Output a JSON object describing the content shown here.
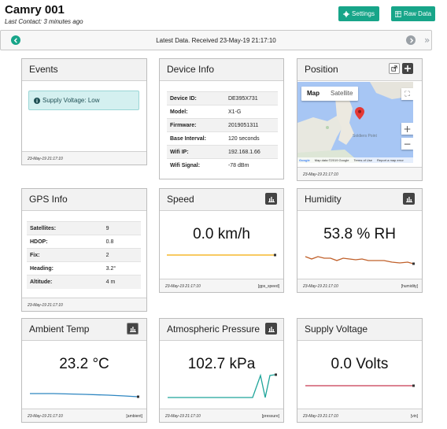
{
  "header": {
    "title": "Camry 001",
    "last_contact": "Last Contact: 3 minutes ago",
    "settings_label": "Settings",
    "raw_data_label": "Raw Data"
  },
  "latest": {
    "text": "Latest Data. Received 23-May-19 21:17:10"
  },
  "colors": {
    "teal": "#17a589",
    "speed_line": "#f5b82e",
    "humidity_line": "#c0602a",
    "ambient_line": "#2e86c1",
    "pressure_line": "#1fa59a",
    "voltage_line": "#d05a6e"
  },
  "events": {
    "title": "Events",
    "alert": "Supply Voltage: Low",
    "timestamp": "23-May-19 21:17:10"
  },
  "device_info": {
    "title": "Device Info",
    "rows": [
      {
        "k": "Device ID:",
        "v": "DE395X731"
      },
      {
        "k": "Model:",
        "v": "X1-G"
      },
      {
        "k": "Firmware:",
        "v": "2019051311"
      },
      {
        "k": "Base Interval:",
        "v": "120 seconds"
      },
      {
        "k": "Wifi IP:",
        "v": "192.168.1.66"
      },
      {
        "k": "Wifi Signal:",
        "v": "-78 dBm"
      }
    ]
  },
  "position": {
    "title": "Position",
    "map_tab": "Map",
    "satellite_tab": "Satellite",
    "place_label": "Soldiers Point",
    "credit_logo": "Google",
    "credit_data": "Map data ©2019 Google",
    "credit_terms": "Terms of Use",
    "credit_report": "Report a map error",
    "timestamp": "23-May-19 21:17:10"
  },
  "gps_info": {
    "title": "GPS Info",
    "rows": [
      {
        "k": "Satellites:",
        "v": "9"
      },
      {
        "k": "HDOP:",
        "v": "0.8"
      },
      {
        "k": "Fix:",
        "v": "2"
      },
      {
        "k": "Heading:",
        "v": "3.2°"
      },
      {
        "k": "Altitude:",
        "v": "4 m"
      }
    ],
    "timestamp": "23-May-19 21:17:10"
  },
  "speed": {
    "title": "Speed",
    "value": "0.0 km/h",
    "timestamp": "23-May-19 21:17:10",
    "metric": "[gps_speed]"
  },
  "humidity": {
    "title": "Humidity",
    "value": "53.8 % RH",
    "timestamp": "23-May-19 21:17:10",
    "metric": "[humidity]"
  },
  "ambient": {
    "title": "Ambient Temp",
    "value": "23.2 °C",
    "timestamp": "23-May-19 21:17:10",
    "metric": "[ambient]"
  },
  "pressure": {
    "title": "Atmospheric Pressure",
    "value": "102.7 kPa",
    "timestamp": "23-May-19 21:17:10",
    "metric": "[pressure]"
  },
  "voltage": {
    "title": "Supply Voltage",
    "value": "0.0 Volts",
    "timestamp": "23-May-19 21:17:10",
    "metric": "[vin]"
  }
}
